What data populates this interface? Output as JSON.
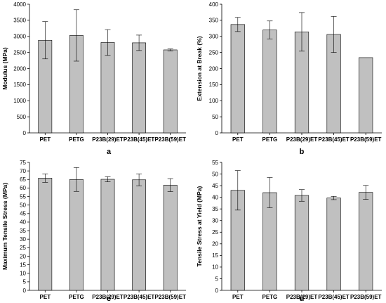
{
  "chart_data": [
    {
      "type": "bar",
      "panel_label": "a",
      "categories": [
        "PET",
        "PETG",
        "P23B(29)ET",
        "P23B(45)ET",
        "P23B(59)ET"
      ],
      "values": [
        2880,
        3030,
        2810,
        2800,
        2580
      ],
      "errors": [
        580,
        800,
        400,
        240,
        30
      ],
      "title": "",
      "xlabel": "",
      "ylabel": "Modulus (MPa)",
      "ylim": [
        0,
        4000
      ],
      "yticks": [
        0,
        500,
        1000,
        1500,
        2000,
        2500,
        3000,
        3500,
        4000
      ],
      "grid": false,
      "bar_color": "#c0c0c0"
    },
    {
      "type": "bar",
      "panel_label": "b",
      "categories": [
        "PET",
        "PETG",
        "P23B(29)ET",
        "P23B(45)ET",
        "P23B(59)ET"
      ],
      "values": [
        337,
        320,
        314,
        306,
        234
      ],
      "errors": [
        22,
        28,
        60,
        56,
        0
      ],
      "title": "",
      "xlabel": "",
      "ylabel": "Extension at Break (%)",
      "ylim": [
        0,
        400
      ],
      "yticks": [
        0,
        50,
        100,
        150,
        200,
        250,
        300,
        350,
        400
      ],
      "grid": false,
      "bar_color": "#c0c0c0"
    },
    {
      "type": "bar",
      "panel_label": "c",
      "categories": [
        "PET",
        "PETG",
        "P23B(29)ET",
        "P23B(45)ET",
        "P23B(59)ET"
      ],
      "values": [
        65.8,
        65.0,
        65.1,
        64.8,
        61.7
      ],
      "errors": [
        2.5,
        7.0,
        1.5,
        3.5,
        3.8
      ],
      "title": "",
      "xlabel": "",
      "ylabel": "Maximum Tensile Stress (MPa)",
      "ylim": [
        0,
        75
      ],
      "yticks": [
        0,
        5,
        10,
        15,
        20,
        25,
        30,
        35,
        40,
        45,
        50,
        55,
        60,
        65,
        70,
        75
      ],
      "grid": false,
      "bar_color": "#c0c0c0"
    },
    {
      "type": "bar",
      "panel_label": "d",
      "categories": [
        "PET",
        "PETG",
        "P23B(29)ET",
        "P23B(45)ET",
        "P23B(59)ET"
      ],
      "values": [
        43.0,
        42.0,
        40.8,
        39.7,
        42.1
      ],
      "errors": [
        8.5,
        6.5,
        2.5,
        0.7,
        3.0
      ],
      "title": "",
      "xlabel": "",
      "ylabel": "Tensile Stress at Yield (MPa)",
      "ylim": [
        0,
        55
      ],
      "yticks": [
        0,
        5,
        10,
        15,
        20,
        25,
        30,
        35,
        40,
        45,
        50,
        55
      ],
      "grid": false,
      "bar_color": "#c0c0c0"
    }
  ]
}
